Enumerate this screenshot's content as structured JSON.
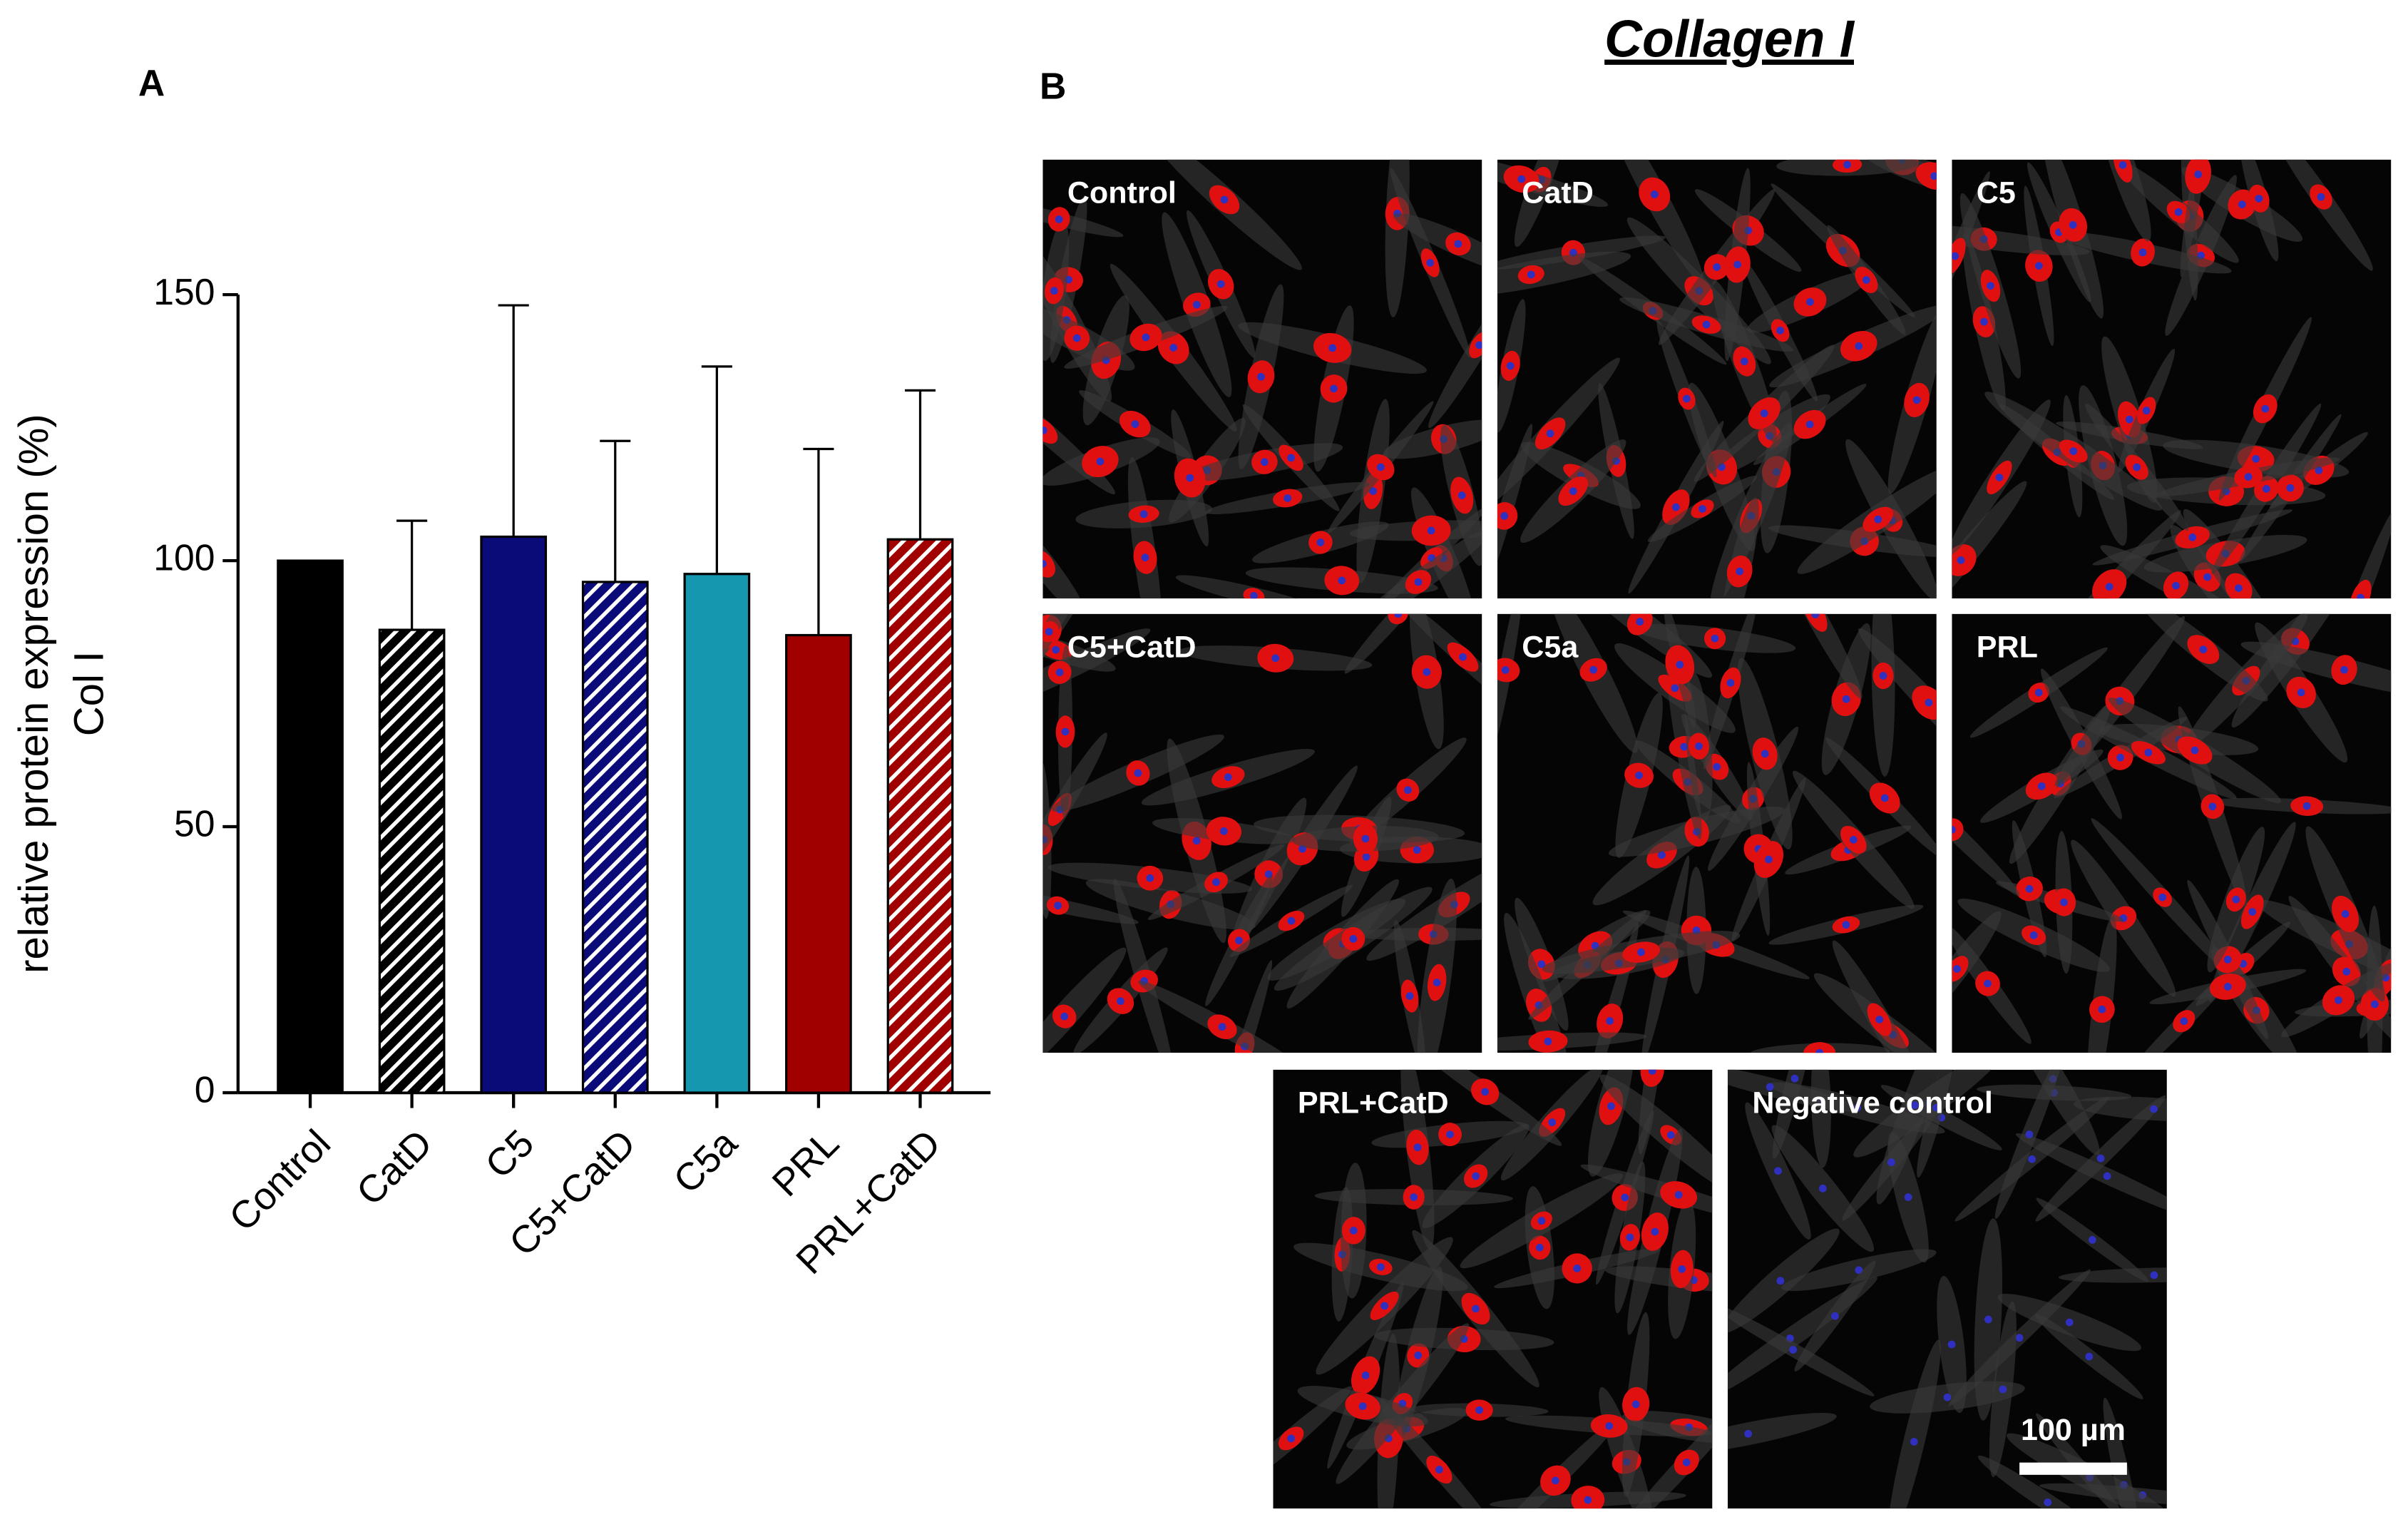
{
  "chart_data": {
    "type": "bar",
    "panel_label": "A",
    "ylabel": [
      "relative protein expression (%)",
      "Col I"
    ],
    "categories": [
      "Control",
      "CatD",
      "C5",
      "C5+CatD",
      "C5a",
      "PRL",
      "PRL+CatD"
    ],
    "values": [
      100,
      87,
      104.5,
      96,
      97.5,
      86,
      104
    ],
    "errors": [
      0,
      20.5,
      43.5,
      26.5,
      39,
      35,
      28
    ],
    "colors": [
      "#000000",
      "#000000",
      "#0a0a78",
      "#0a0a78",
      "#1597b0",
      "#a00000",
      "#a00000"
    ],
    "hatched": [
      false,
      true,
      false,
      true,
      false,
      false,
      true
    ],
    "ylim": [
      0,
      150
    ],
    "yticks": [
      0,
      50,
      100,
      150
    ]
  },
  "panel_b": {
    "label": "B",
    "title": "Collagen I",
    "images": [
      "Control",
      "CatD",
      "C5",
      "C5+CatD",
      "C5a",
      "PRL",
      "PRL+CatD",
      "Negative control"
    ],
    "scale_bar": "100 µm"
  }
}
